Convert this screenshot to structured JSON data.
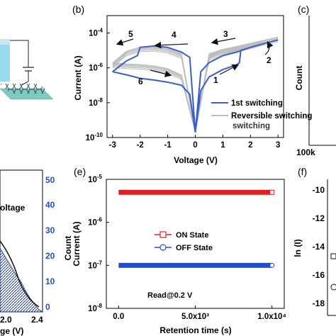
{
  "panels": {
    "b": "(b)",
    "c": "(c)",
    "e": "(e)",
    "f": "(f)"
  },
  "chart_data": [
    {
      "panel": "(b)",
      "type": "line",
      "xlabel": "Voltage (V)",
      "ylabel": "Current (A)",
      "xlim": [
        -3.2,
        3.2
      ],
      "ylim": [
        1e-10,
        0.001
      ],
      "yscale": "log",
      "x_ticks": [
        "-3",
        "-2",
        "-1",
        "0",
        "1",
        "2",
        "3"
      ],
      "y_ticks": [
        "10-10",
        "10-8",
        "10-6",
        "10-4"
      ],
      "series": [
        {
          "name": "1st switching",
          "color": "#3a5fc9",
          "x": [
            -3.0,
            -2.5,
            -2.1,
            -2.0,
            -1.5,
            -1.0,
            -0.5,
            -0.2,
            0.0,
            0.2,
            0.5,
            1.0,
            1.5,
            1.6,
            1.65,
            2.0,
            2.5,
            3.0,
            2.5,
            2.0,
            1.5,
            1.0,
            0.5,
            0.2,
            0.0,
            -0.2,
            -0.5,
            -1.0,
            -1.5,
            -2.0,
            -2.5,
            -3.0
          ],
          "y": [
            6e-07,
            2.5e-06,
            5e-06,
            1.5e-05,
            1.8e-05,
            1.5e-05,
            8e-06,
            4e-06,
            2e-10,
            5e-08,
            3e-07,
            8e-07,
            1.5e-06,
            2e-06,
            1e-05,
            1.5e-05,
            2.5e-05,
            4e-05,
            2.5e-05,
            1.5e-05,
            8e-06,
            5e-06,
            2e-06,
            6e-07,
            2e-10,
            3e-08,
            1e-07,
            1.5e-07,
            2e-07,
            2.5e-07,
            4e-07,
            6e-07
          ]
        },
        {
          "name": "Reversible switching",
          "color": "#bdbdbd",
          "x": [
            -3.0,
            -2.5,
            -2.0,
            -1.5,
            -1.0,
            -0.5,
            0.0,
            0.5,
            1.0,
            1.5,
            2.0,
            2.5,
            3.0,
            2.5,
            2.0,
            1.5,
            1.0,
            0.5,
            0.0,
            -0.5,
            -1.0,
            -1.5,
            -2.0,
            -2.5,
            -3.0
          ],
          "y": [
            1.5e-06,
            7e-06,
            1.2e-05,
            1.3e-05,
            1e-05,
            5e-06,
            2e-10,
            4e-06,
            8e-06,
            1.2e-05,
            1.8e-05,
            3e-05,
            4.5e-05,
            3e-05,
            2e-05,
            1.3e-05,
            9e-06,
            5e-06,
            2e-10,
            3e-07,
            7e-07,
            1e-06,
            1.2e-06,
            1.3e-06,
            1.5e-06
          ]
        }
      ],
      "annotations": [
        "1",
        "2",
        "3",
        "4",
        "5",
        "6"
      ],
      "legend": [
        "1st switching",
        "Reversible switching"
      ]
    },
    {
      "panel": "(e)",
      "type": "scatter",
      "xlabel": "Retention time (s)",
      "ylabel": "Current (A)",
      "xlim": [
        -800,
        10800
      ],
      "ylim": [
        1e-08,
        1e-05
      ],
      "yscale": "log",
      "x_ticks": [
        "0.0",
        "5.0x10³",
        "1.0x10⁴"
      ],
      "y_ticks": [
        "10-8",
        "10-7",
        "10-6",
        "10-5"
      ],
      "series": [
        {
          "name": "ON State",
          "color": "#e02020",
          "marker": "square",
          "x": [
            0,
            10000
          ],
          "y": [
            5e-06,
            5e-06
          ]
        },
        {
          "name": "OFF State",
          "color": "#2050d0",
          "marker": "circle",
          "x": [
            0,
            10000
          ],
          "y": [
            1e-07,
            1e-07
          ]
        }
      ],
      "annotation": "Read@0.2 V"
    }
  ],
  "partial_panels": {
    "c_ylabel": "Count",
    "c_tick": "100k",
    "hist_text": "oltage",
    "hist_xticks": [
      "2.0",
      "2.4"
    ],
    "hist_xlabel": "ge (V)",
    "hist_yticks": [
      "0",
      "10",
      "20",
      "30",
      "40",
      "50"
    ],
    "hist_ylabel": "Count",
    "f_ylabel": "ln (I)",
    "f_yticks": [
      "-10",
      "-12",
      "-14",
      "-16",
      "-18"
    ]
  }
}
